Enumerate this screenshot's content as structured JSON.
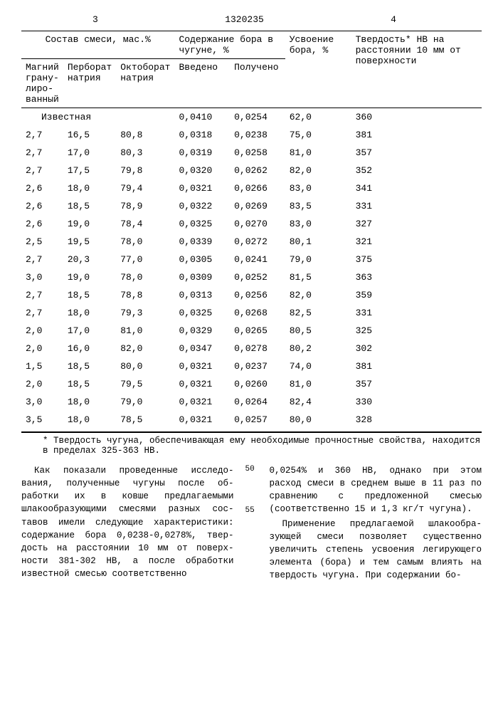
{
  "header": {
    "page_left": "3",
    "patent_number": "1320235",
    "page_right": "4"
  },
  "table": {
    "head": {
      "composition": "Состав смеси, мас.%",
      "boron_content": "Содержание бора в чугуне, %",
      "absorption": "Усвоение бора, %",
      "hardness": "Твердость* НВ на расстоянии 10 мм от поверхности",
      "mg": "Магний грану­лиро­ванный",
      "perborate": "Перборат натрия",
      "octoborate": "Октоборат натрия",
      "introduced": "Введено",
      "obtained": "Получено"
    },
    "rows": [
      {
        "mg": "Известная",
        "pb": "",
        "ob": "",
        "in": "0,0410",
        "out": "0,0254",
        "abs": "62,0",
        "hb": "360",
        "known": true
      },
      {
        "mg": "2,7",
        "pb": "16,5",
        "ob": "80,8",
        "in": "0,0318",
        "out": "0,0238",
        "abs": "75,0",
        "hb": "381"
      },
      {
        "mg": "2,7",
        "pb": "17,0",
        "ob": "80,3",
        "in": "0,0319",
        "out": "0,0258",
        "abs": "81,0",
        "hb": "357"
      },
      {
        "mg": "2,7",
        "pb": "17,5",
        "ob": "79,8",
        "in": "0,0320",
        "out": "0,0262",
        "abs": "82,0",
        "hb": "352"
      },
      {
        "mg": "2,6",
        "pb": "18,0",
        "ob": "79,4",
        "in": "0,0321",
        "out": "0,0266",
        "abs": "83,0",
        "hb": "341"
      },
      {
        "mg": "2,6",
        "pb": "18,5",
        "ob": "78,9",
        "in": "0,0322",
        "out": "0,0269",
        "abs": "83,5",
        "hb": "331"
      },
      {
        "mg": "2,6",
        "pb": "19,0",
        "ob": "78,4",
        "in": "0,0325",
        "out": "0,0270",
        "abs": "83,0",
        "hb": "327"
      },
      {
        "mg": "2,5",
        "pb": "19,5",
        "ob": "78,0",
        "in": "0,0339",
        "out": "0,0272",
        "abs": "80,1",
        "hb": "321"
      },
      {
        "mg": "2,7",
        "pb": "20,3",
        "ob": "77,0",
        "in": "0,0305",
        "out": "0,0241",
        "abs": "79,0",
        "hb": "375"
      },
      {
        "mg": "3,0",
        "pb": "19,0",
        "ob": "78,0",
        "in": "0,0309",
        "out": "0,0252",
        "abs": "81,5",
        "hb": "363"
      },
      {
        "mg": "2,7",
        "pb": "18,5",
        "ob": "78,8",
        "in": "0,0313",
        "out": "0,0256",
        "abs": "82,0",
        "hb": "359"
      },
      {
        "mg": "2,7",
        "pb": "18,0",
        "ob": "79,3",
        "in": "0,0325",
        "out": "0,0268",
        "abs": "82,5",
        "hb": "331"
      },
      {
        "mg": "2,0",
        "pb": "17,0",
        "ob": "81,0",
        "in": "0,0329",
        "out": "0,0265",
        "abs": "80,5",
        "hb": "325"
      },
      {
        "mg": "2,0",
        "pb": "16,0",
        "ob": "82,0",
        "in": "0,0347",
        "out": "0,0278",
        "abs": "80,2",
        "hb": "302"
      },
      {
        "mg": "1,5",
        "pb": "18,5",
        "ob": "80,0",
        "in": "0,0321",
        "out": "0,0237",
        "abs": "74,0",
        "hb": "381"
      },
      {
        "mg": "2,0",
        "pb": "18,5",
        "ob": "79,5",
        "in": "0,0321",
        "out": "0,0260",
        "abs": "81,0",
        "hb": "357"
      },
      {
        "mg": "3,0",
        "pb": "18,0",
        "ob": "79,0",
        "in": "0,0321",
        "out": "0,0264",
        "abs": "82,4",
        "hb": "330"
      },
      {
        "mg": "3,5",
        "pb": "18,0",
        "ob": "78,5",
        "in": "0,0321",
        "out": "0,0257",
        "abs": "80,0",
        "hb": "328"
      }
    ]
  },
  "footnote": "* Твердость чугуна, обеспечивающая ему необходимые прочностные свойства, находится в пределах 325-363 НВ.",
  "body": {
    "line50": "50",
    "line55": "55",
    "left": "Как показали проведенные исследо­вания, полученные чугуны после об­работки их в ковше предлагаемыми шлакообразующими смесями разных сос­тавов имели следующие характеристики: содержание бора 0,0238-0,0278%, твер­дость на расстоянии 10 мм от поверх­ности 381-302 НВ, а после обработки известной смесью соответственно",
    "right1": "0,0254% и 360 НВ, однако при этом расход смеси в среднем выше в 11 раз по сравнению с предложенной смесью (соответственно 15 и 1,3 кг/т чугуна).",
    "right2": "Применение предлагаемой шлакообра­зующей смеси позволяет существенно увеличить степень усвоения легирую­щего элемента (бора) и тем самым влиять на твердость чугуна. При содержании бо-"
  }
}
